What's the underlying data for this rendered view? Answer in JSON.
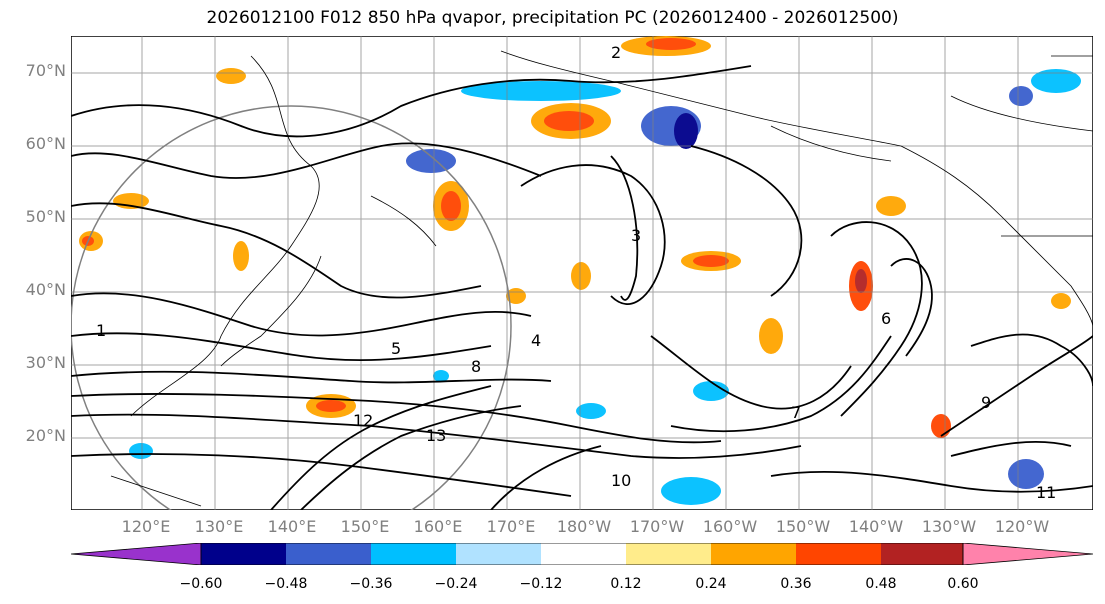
{
  "title": "2026012100 F012 850 hPa qvapor, precipitation PC (2026012400 - 2026012500)",
  "lat_labels": [
    "70°N",
    "60°N",
    "50°N",
    "40°N",
    "30°N",
    "20°N"
  ],
  "lon_labels": [
    "120°E",
    "130°E",
    "140°E",
    "150°E",
    "160°E",
    "170°E",
    "180°W",
    "170°W",
    "160°W",
    "150°W",
    "140°W",
    "130°W",
    "120°W"
  ],
  "colorbar": {
    "ticks": [
      "−0.60",
      "−0.48",
      "−0.36",
      "−0.24",
      "−0.12",
      "0.12",
      "0.24",
      "0.36",
      "0.48",
      "0.60"
    ],
    "colors": [
      "#9932CC",
      "#00008B",
      "#3A5FCD",
      "#00BFFF",
      "#B0E2FF",
      "#FFFFFF",
      "#FFEC8B",
      "#FFA500",
      "#FF4500",
      "#B22222",
      "#FF82AB"
    ]
  },
  "contour_labels": [
    "1",
    "2",
    "3",
    "4",
    "5",
    "6",
    "7",
    "8",
    "9",
    "10",
    "11",
    "12",
    "13"
  ]
}
